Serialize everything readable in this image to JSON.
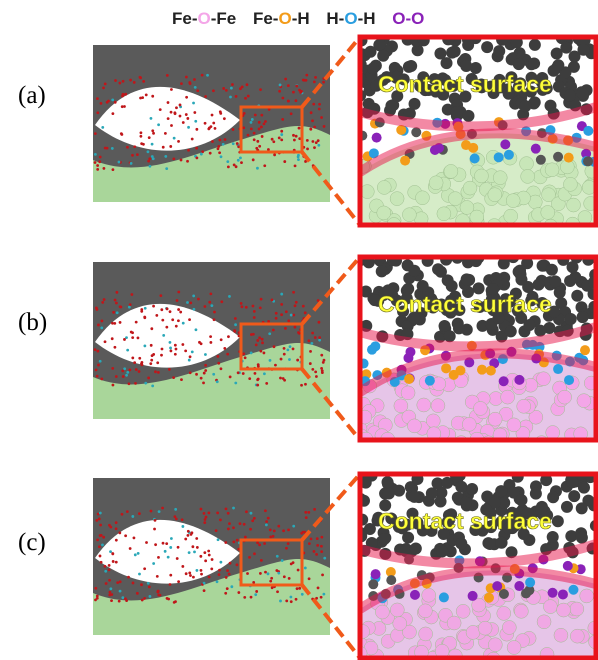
{
  "legend": [
    {
      "parts": [
        "Fe-",
        "O",
        "-Fe"
      ]
    },
    {
      "parts": [
        "Fe-",
        "O",
        "-H"
      ]
    },
    {
      "parts": [
        "H-",
        "O",
        "-H"
      ]
    },
    {
      "parts": [
        "O-O"
      ]
    }
  ],
  "panels": [
    {
      "label": "(a)",
      "zoom_text": "Contact surface"
    },
    {
      "label": "(b)",
      "zoom_text": "Contact surface"
    },
    {
      "label": "(c)",
      "zoom_text": "Contact surface"
    }
  ]
}
